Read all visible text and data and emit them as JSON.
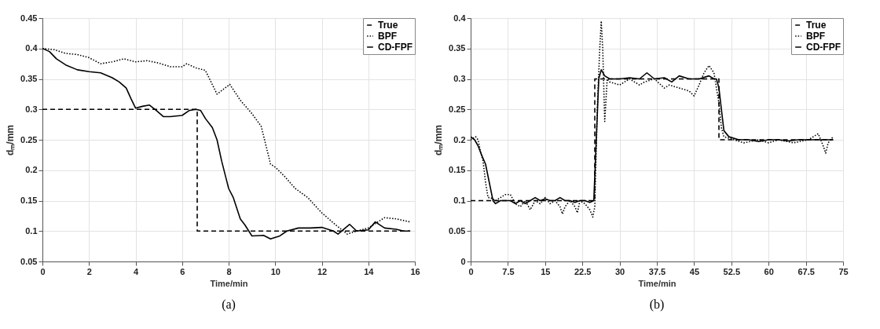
{
  "chart_data": [
    {
      "type": "line",
      "xlabel": "Time/min",
      "ylabel": "dₘ/mm",
      "annotations": [
        "(a)"
      ],
      "xlim": [
        0,
        16
      ],
      "xticks": [
        0,
        2,
        4,
        6,
        8,
        10,
        12,
        14,
        16
      ],
      "ylim": [
        0.05,
        0.45
      ],
      "yticks": [
        0.05,
        0.1,
        0.15,
        0.2,
        0.25,
        0.3,
        0.35,
        0.4,
        0.45
      ],
      "grid": true,
      "legend": "top right",
      "series": [
        {
          "name": "True",
          "color": "#000000",
          "line_style": "dashed",
          "x": [
            0,
            6.65,
            6.65,
            15.8
          ],
          "values": [
            0.3,
            0.3,
            0.1,
            0.1
          ]
        },
        {
          "name": "BPF",
          "color": "#000000",
          "line_style": "dotted",
          "x": [
            0,
            0.5,
            1,
            1.5,
            2,
            2.5,
            3,
            3.5,
            4,
            4.5,
            5,
            5.5,
            6,
            6.2,
            6.6,
            7,
            7.5,
            8.05,
            8.5,
            9,
            9.4,
            9.8,
            10,
            10.4,
            10.86,
            11.4,
            12,
            12.6,
            13.1,
            13.5,
            14,
            14.7,
            15.2,
            15.8
          ],
          "values": [
            0.4,
            0.398,
            0.392,
            0.39,
            0.385,
            0.375,
            0.378,
            0.383,
            0.378,
            0.38,
            0.376,
            0.37,
            0.37,
            0.375,
            0.368,
            0.364,
            0.325,
            0.341,
            0.315,
            0.293,
            0.272,
            0.21,
            0.205,
            0.19,
            0.17,
            0.155,
            0.13,
            0.11,
            0.095,
            0.1,
            0.105,
            0.122,
            0.12,
            0.115
          ]
        },
        {
          "name": "CD-FPF",
          "color": "#000000",
          "line_style": "solid",
          "x": [
            0,
            0.3,
            0.6,
            1,
            1.5,
            2,
            2.5,
            3,
            3.3,
            3.6,
            3.8,
            4,
            4.3,
            4.6,
            4.9,
            5.2,
            5.5,
            6,
            6.3,
            6.6,
            6.8,
            7,
            7.3,
            7.5,
            7.7,
            7.9,
            8,
            8.2,
            8.5,
            8.7,
            9,
            9.5,
            9.8,
            10.2,
            10.5,
            11,
            11.5,
            12,
            12.5,
            12.7,
            13.2,
            13.5,
            14,
            14.3,
            14.7,
            15.2,
            15.5,
            15.8
          ],
          "values": [
            0.4,
            0.395,
            0.383,
            0.373,
            0.365,
            0.362,
            0.36,
            0.352,
            0.345,
            0.335,
            0.318,
            0.302,
            0.305,
            0.307,
            0.298,
            0.288,
            0.288,
            0.29,
            0.298,
            0.3,
            0.298,
            0.285,
            0.27,
            0.25,
            0.215,
            0.185,
            0.17,
            0.155,
            0.12,
            0.11,
            0.092,
            0.093,
            0.087,
            0.092,
            0.1,
            0.105,
            0.105,
            0.106,
            0.1,
            0.095,
            0.111,
            0.1,
            0.102,
            0.115,
            0.105,
            0.103,
            0.1,
            0.1
          ]
        }
      ]
    },
    {
      "type": "line",
      "xlabel": "Time/min",
      "ylabel": "dₘ/mm",
      "annotations": [
        "(b)"
      ],
      "xlim": [
        0,
        75
      ],
      "xticks": [
        0,
        7.5,
        15,
        22.5,
        30,
        37.5,
        45,
        52.5,
        60,
        67.5,
        75
      ],
      "ylim": [
        0,
        0.4
      ],
      "yticks": [
        0,
        0.05,
        0.1,
        0.15,
        0.2,
        0.25,
        0.3,
        0.35,
        0.4
      ],
      "grid": true,
      "legend": "top right",
      "series": [
        {
          "name": "True",
          "color": "#000000",
          "line_style": "dashed",
          "x": [
            0,
            25,
            25,
            50,
            50,
            73
          ],
          "values": [
            0.1,
            0.1,
            0.3,
            0.3,
            0.2,
            0.2
          ]
        },
        {
          "name": "BPF",
          "color": "#000000",
          "line_style": "dotted",
          "x": [
            0,
            1,
            1.5,
            2,
            2.5,
            3,
            3.5,
            4,
            5,
            6,
            7,
            8,
            9,
            10,
            11,
            12,
            13,
            14,
            15,
            16,
            17,
            18,
            18.5,
            19,
            20,
            21,
            21.5,
            22,
            23,
            24,
            24.6,
            25,
            25.5,
            26,
            26.3,
            26.6,
            27,
            27.5,
            28,
            30,
            32,
            34,
            35,
            37,
            39,
            40,
            42,
            44,
            45,
            46,
            47,
            48,
            49,
            50,
            50.5,
            51,
            53,
            55,
            58,
            60,
            62,
            65,
            68,
            70,
            71,
            71.5,
            72,
            73
          ],
          "values": [
            0.2,
            0.205,
            0.2,
            0.18,
            0.165,
            0.13,
            0.105,
            0.105,
            0.1,
            0.105,
            0.11,
            0.11,
            0.095,
            0.09,
            0.1,
            0.085,
            0.1,
            0.095,
            0.105,
            0.095,
            0.1,
            0.09,
            0.078,
            0.09,
            0.1,
            0.09,
            0.08,
            0.1,
            0.095,
            0.085,
            0.073,
            0.09,
            0.25,
            0.35,
            0.395,
            0.35,
            0.23,
            0.3,
            0.295,
            0.29,
            0.3,
            0.29,
            0.295,
            0.3,
            0.285,
            0.29,
            0.285,
            0.28,
            0.272,
            0.29,
            0.31,
            0.322,
            0.31,
            0.26,
            0.22,
            0.205,
            0.2,
            0.195,
            0.2,
            0.195,
            0.2,
            0.195,
            0.2,
            0.21,
            0.19,
            0.178,
            0.195,
            0.205
          ]
        },
        {
          "name": "CD-FPF",
          "color": "#000000",
          "line_style": "solid",
          "x": [
            0,
            0.8,
            1.5,
            2.2,
            3,
            3.5,
            4,
            4.5,
            5,
            6,
            7,
            8,
            9,
            10,
            11,
            12,
            13,
            14,
            15,
            16,
            17,
            18,
            19,
            20,
            21,
            22,
            23,
            24,
            24.8,
            25.3,
            25.8,
            26.3,
            27,
            28,
            30,
            32,
            34,
            35.5,
            37,
            39,
            40.5,
            42,
            44,
            46,
            48,
            49,
            49.5,
            50,
            50.5,
            51,
            52,
            54,
            56,
            58,
            60,
            62,
            64,
            66,
            68,
            70,
            73
          ],
          "values": [
            0.205,
            0.2,
            0.19,
            0.175,
            0.16,
            0.14,
            0.12,
            0.1,
            0.095,
            0.1,
            0.1,
            0.1,
            0.095,
            0.1,
            0.095,
            0.1,
            0.105,
            0.1,
            0.103,
            0.1,
            0.1,
            0.105,
            0.1,
            0.1,
            0.097,
            0.1,
            0.1,
            0.097,
            0.1,
            0.2,
            0.3,
            0.315,
            0.305,
            0.3,
            0.3,
            0.302,
            0.3,
            0.31,
            0.3,
            0.302,
            0.295,
            0.305,
            0.3,
            0.3,
            0.305,
            0.3,
            0.3,
            0.285,
            0.25,
            0.215,
            0.205,
            0.2,
            0.2,
            0.197,
            0.2,
            0.2,
            0.198,
            0.2,
            0.2,
            0.2,
            0.2
          ]
        }
      ]
    }
  ]
}
